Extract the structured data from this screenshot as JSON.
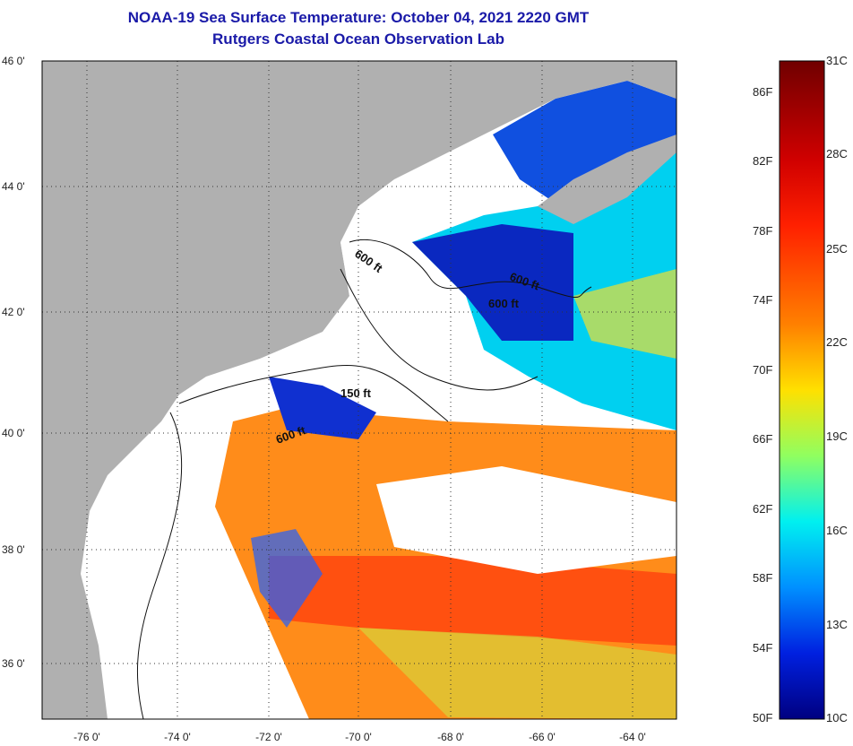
{
  "title": {
    "line1": "NOAA-19 Sea Surface Temperature:  October 04, 2021 2220 GMT",
    "line2": "Rutgers Coastal Ocean Observation Lab"
  },
  "map": {
    "lat_ticks": [
      "46 0'",
      "44 0'",
      "42 0'",
      "40 0'",
      "38 0'",
      "36 0'"
    ],
    "lon_ticks": [
      "-76 0'",
      "-74 0'",
      "-72 0'",
      "-70 0'",
      "-68 0'",
      "-66 0'",
      "-64 0'"
    ],
    "contour_labels": [
      "600 ft",
      "600 ft",
      "600 ft",
      "150 ft",
      "600 ft"
    ],
    "colors": {
      "land": "#b0b0b0",
      "cloud": "#ffffff"
    }
  },
  "colorbar": {
    "fahrenheit": [
      "86F",
      "82F",
      "78F",
      "74F",
      "70F",
      "66F",
      "62F",
      "58F",
      "54F",
      "50F"
    ],
    "celsius": [
      "31C",
      "28C",
      "25C",
      "22C",
      "19C",
      "16C",
      "13C",
      "10C"
    ],
    "range_c": [
      10,
      31
    ]
  }
}
